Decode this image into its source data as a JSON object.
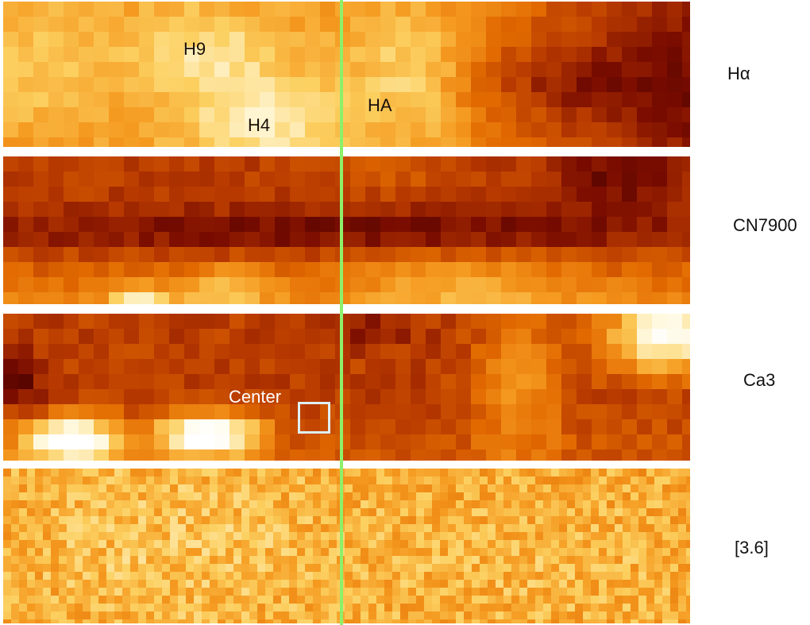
{
  "panels": [
    {
      "label": "Hα",
      "kind": "ha"
    },
    {
      "label": "CN7900",
      "kind": "cn"
    },
    {
      "label": "Ca3",
      "kind": "ca"
    },
    {
      "label": "[3.6]",
      "kind": "ir"
    }
  ],
  "annotations": {
    "h9": "H9",
    "h4": "H4",
    "ha": "HA",
    "center": "Center"
  },
  "colors": {
    "colormap": [
      "#3a0000",
      "#7a0c00",
      "#b83a00",
      "#e26a00",
      "#f59a20",
      "#fcd060",
      "#fff7d8",
      "#ffffff"
    ],
    "slit_line": "#8df06a",
    "center_box": "#dfeff4"
  }
}
